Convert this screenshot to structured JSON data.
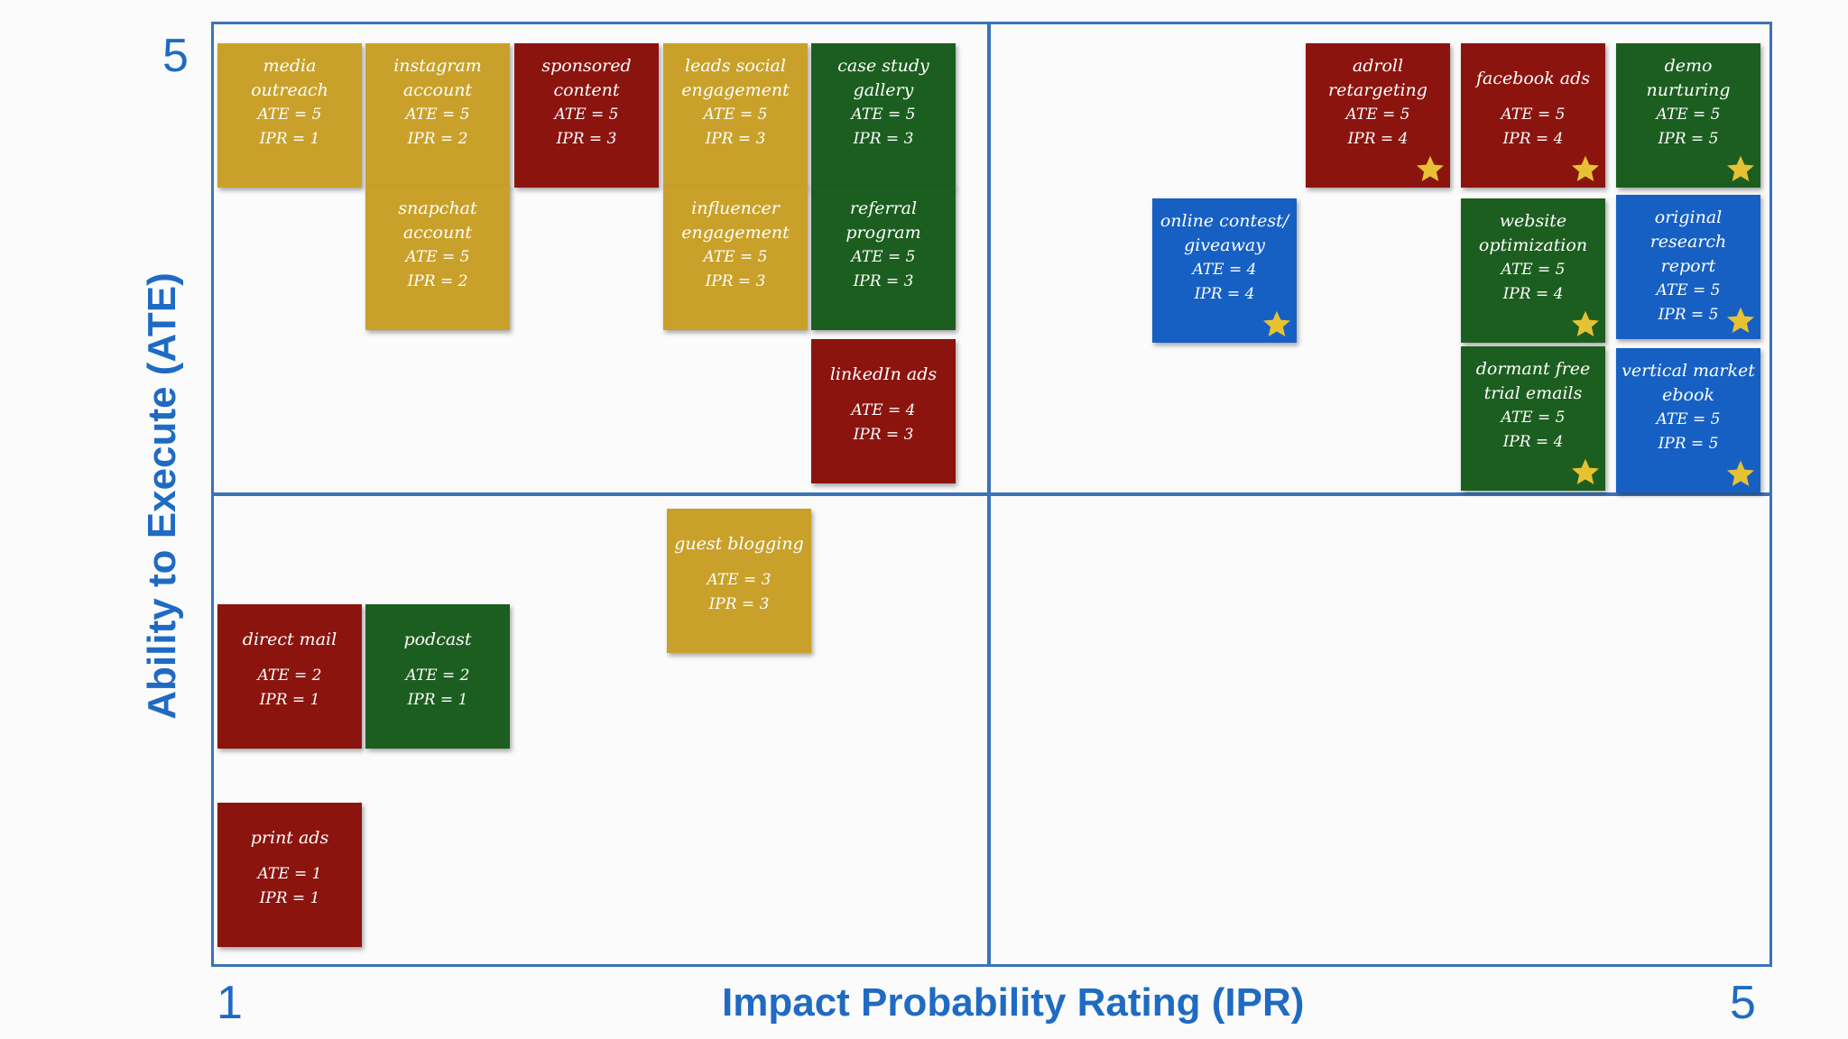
{
  "axes": {
    "y_label": "Ability to Execute (ATE)",
    "x_label": "Impact Probability Rating (IPR)",
    "y_top": "5",
    "x_left": "1",
    "x_right": "5"
  },
  "colors": {
    "red": "#8b140f",
    "gold": "#c9a12a",
    "green": "#1c5e1f",
    "blue": "#1660c4",
    "axis": "#3b73b8",
    "label": "#1f6bc3",
    "star": "#e6c233"
  },
  "notes": [
    {
      "title": "media outreach",
      "ate": "ATE = 5",
      "ipr": "IPR = 1",
      "color": "gold",
      "star": false
    },
    {
      "title": "instagram account",
      "ate": "ATE = 5",
      "ipr": "IPR = 2",
      "color": "gold",
      "star": false
    },
    {
      "title": "sponsored content",
      "ate": "ATE = 5",
      "ipr": "IPR = 3",
      "color": "red",
      "star": false
    },
    {
      "title": "leads social engagement",
      "ate": "ATE = 5",
      "ipr": "IPR = 3",
      "color": "gold",
      "star": false
    },
    {
      "title": "case study gallery",
      "ate": "ATE = 5",
      "ipr": "IPR = 3",
      "color": "green",
      "star": false
    },
    {
      "title": "snapchat account",
      "ate": "ATE = 5",
      "ipr": "IPR = 2",
      "color": "gold",
      "star": false
    },
    {
      "title": "influencer engagement",
      "ate": "ATE = 5",
      "ipr": "IPR = 3",
      "color": "gold",
      "star": false
    },
    {
      "title": "referral program",
      "ate": "ATE = 5",
      "ipr": "IPR = 3",
      "color": "green",
      "star": false
    },
    {
      "title": "linkedIn ads",
      "ate": "ATE = 4",
      "ipr": "IPR = 3",
      "color": "red",
      "star": false
    },
    {
      "title": "adroll retargeting",
      "ate": "ATE = 5",
      "ipr": "IPR = 4",
      "color": "red",
      "star": true
    },
    {
      "title": "facebook ads",
      "ate": "ATE = 5",
      "ipr": "IPR = 4",
      "color": "red",
      "star": true
    },
    {
      "title": "demo nurturing",
      "ate": "ATE = 5",
      "ipr": "IPR = 5",
      "color": "green",
      "star": true
    },
    {
      "title": "online contest/ giveaway",
      "ate": "ATE = 4",
      "ipr": "IPR = 4",
      "color": "blue",
      "star": true
    },
    {
      "title": "website optimization",
      "ate": "ATE = 5",
      "ipr": "IPR = 4",
      "color": "green",
      "star": true
    },
    {
      "title": "original research report",
      "ate": "ATE = 5",
      "ipr": "IPR = 5",
      "color": "blue",
      "star": true
    },
    {
      "title": "dormant free trial emails",
      "ate": "ATE = 5",
      "ipr": "IPR = 4",
      "color": "green",
      "star": true
    },
    {
      "title": "vertical market ebook",
      "ate": "ATE = 5",
      "ipr": "IPR = 5",
      "color": "blue",
      "star": true
    },
    {
      "title": "guest blogging",
      "ate": "ATE = 3",
      "ipr": "IPR = 3",
      "color": "gold",
      "star": false
    },
    {
      "title": "direct mail",
      "ate": "ATE = 2",
      "ipr": "IPR = 1",
      "color": "red",
      "star": false
    },
    {
      "title": "podcast",
      "ate": "ATE = 2",
      "ipr": "IPR = 1",
      "color": "green",
      "star": false
    },
    {
      "title": "print ads",
      "ate": "ATE = 1",
      "ipr": "IPR = 1",
      "color": "red",
      "star": false
    }
  ]
}
